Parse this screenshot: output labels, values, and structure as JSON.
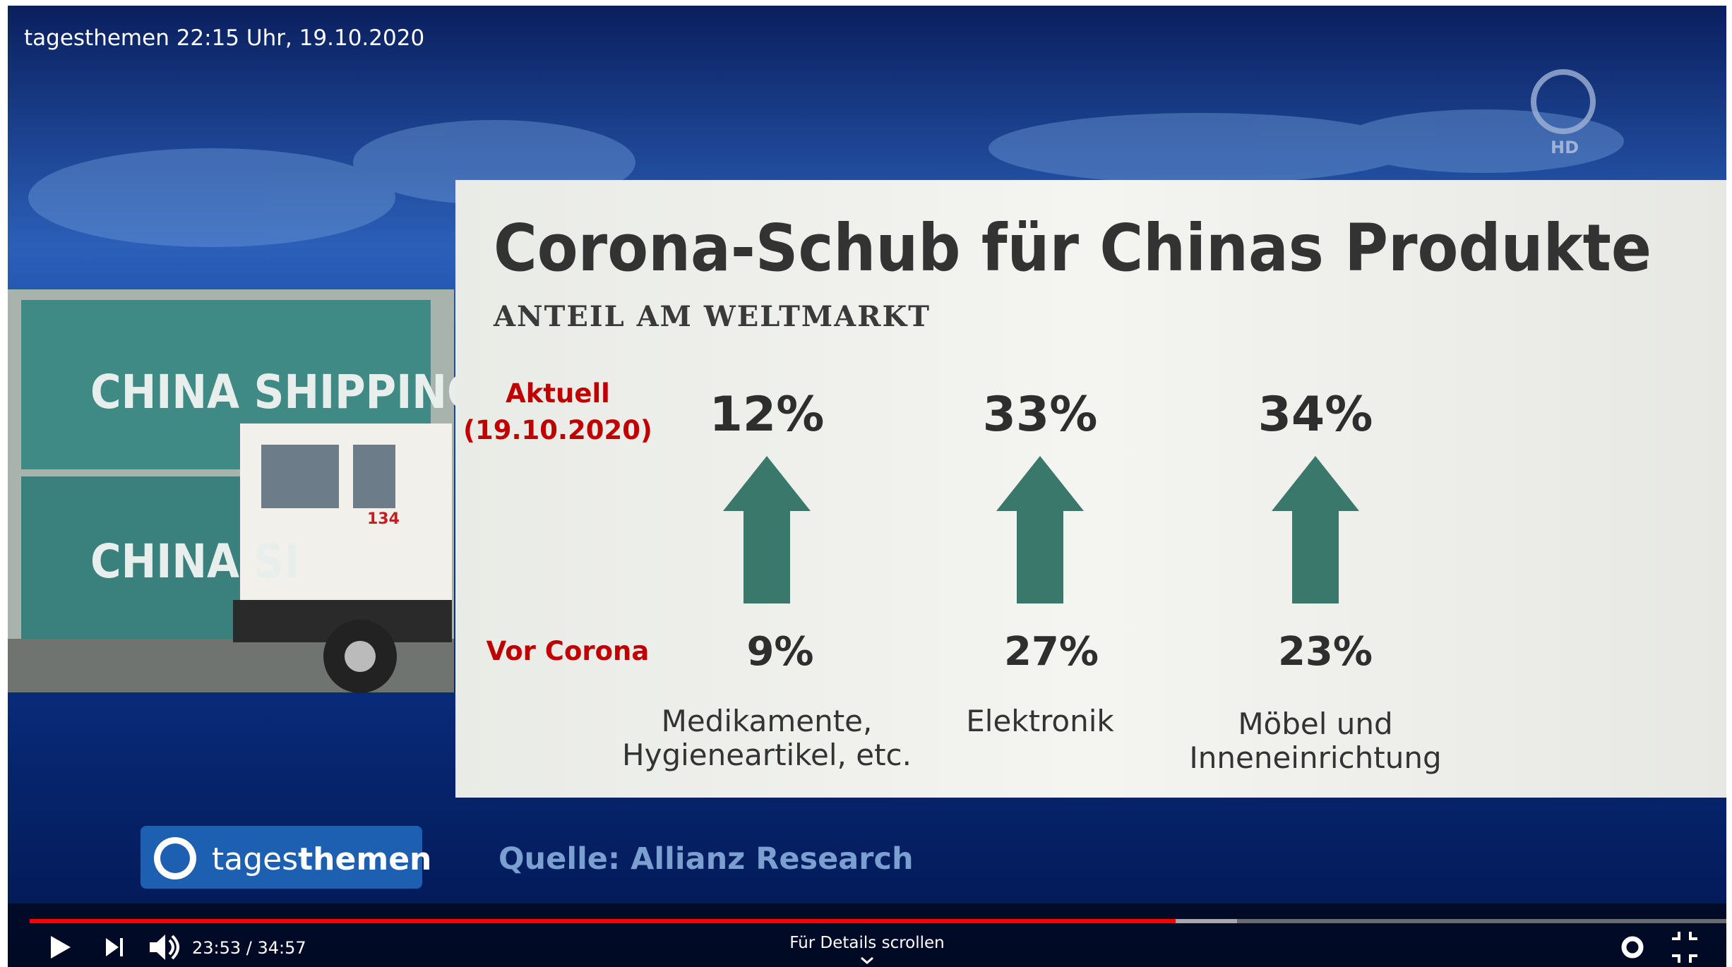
{
  "video_title": "tagesthemen 22:15 Uhr, 19.10.2020",
  "channel_badge": "HD",
  "photo": {
    "container_texts": [
      "CHINA SHIPPING",
      "CHINA SI"
    ],
    "truck_number": "134"
  },
  "graphic": {
    "title": "Corona-Schub für Chinas Produkte",
    "subtitle": "ANTEIL AM WELTMARKT",
    "row_labels": {
      "current": [
        "Aktuell",
        "(19.10.2020)"
      ],
      "before": "Vor Corona"
    },
    "items": [
      {
        "current": "12%",
        "before": "9%",
        "label": [
          "Medikamente,",
          "Hygieneartikel, etc."
        ]
      },
      {
        "current": "33%",
        "before": "27%",
        "label": [
          "Elektronik"
        ]
      },
      {
        "current": "34%",
        "before": "23%",
        "label": [
          "Möbel und",
          "Inneneinrichtung"
        ]
      }
    ],
    "source": "Quelle: Allianz Research"
  },
  "logo": {
    "brand": [
      "tages",
      "themen"
    ]
  },
  "player": {
    "time": "23:53 / 34:57",
    "hint": "Für Details scrollen"
  }
}
